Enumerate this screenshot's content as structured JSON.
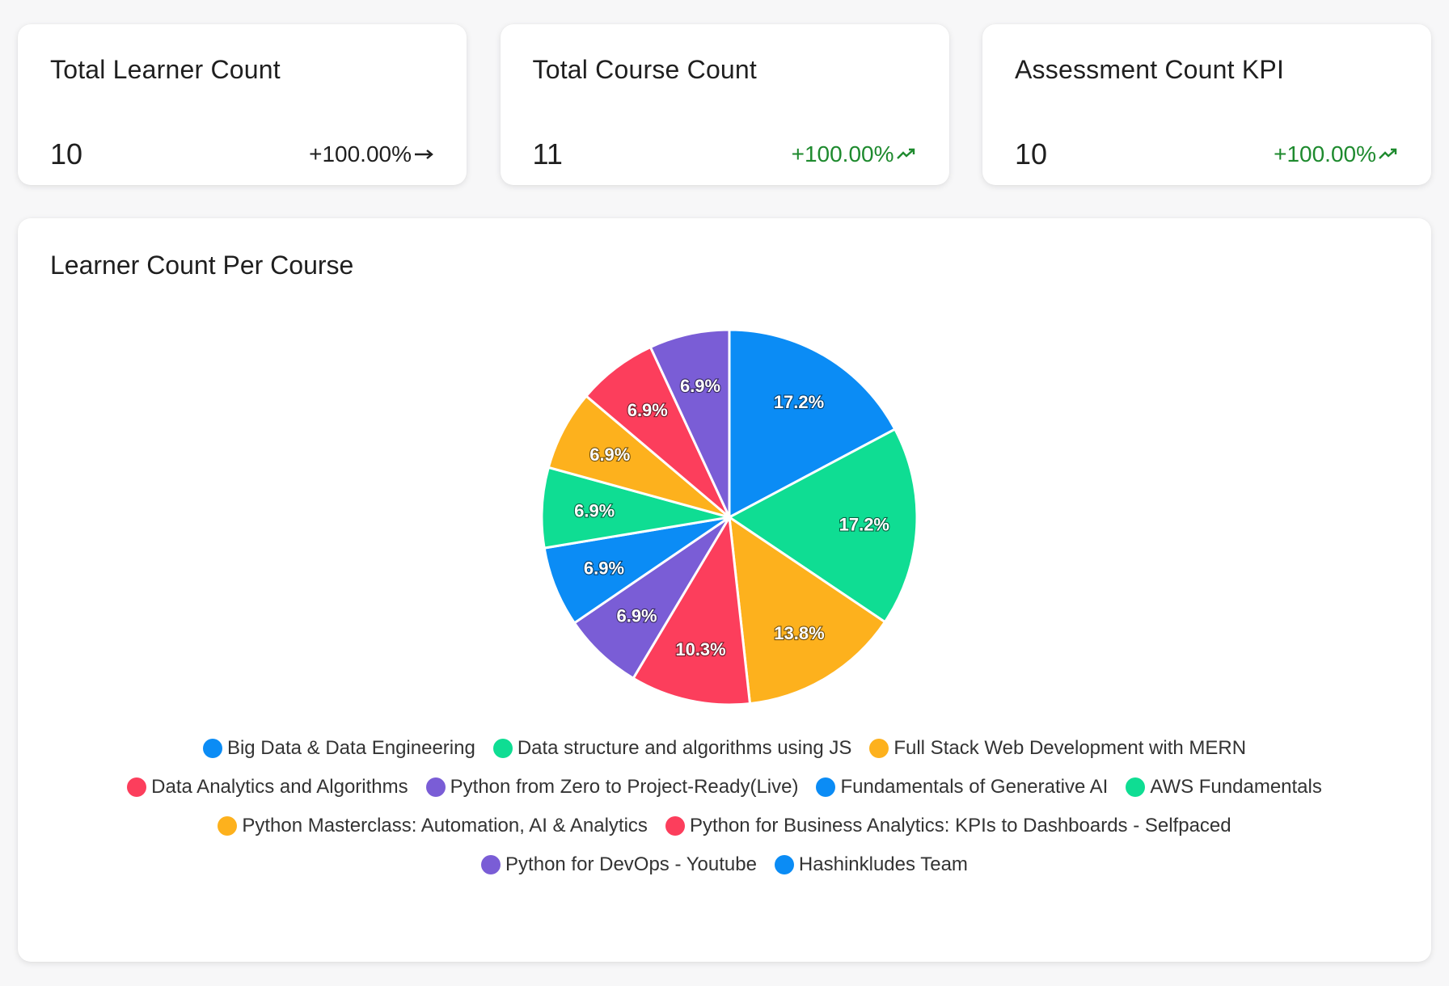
{
  "kpis": [
    {
      "title": "Total Learner Count",
      "value": "10",
      "change": "+100.00%",
      "trend": "flat"
    },
    {
      "title": "Total Course Count",
      "value": "11",
      "change": "+100.00%",
      "trend": "up"
    },
    {
      "title": "Assessment Count KPI",
      "value": "10",
      "change": "+100.00%",
      "trend": "up"
    }
  ],
  "colors": {
    "trend_up": "#1e8a2e",
    "trend_flat": "#1f1f1f"
  },
  "chart_data": {
    "type": "pie",
    "title": "Learner Count Per Course",
    "slices": [
      {
        "label": "Big Data & Data Engineering",
        "percent": 17.2,
        "display": "17.2%",
        "color": "#0b8cf5"
      },
      {
        "label": "Data structure and algorithms using JS",
        "percent": 17.2,
        "display": "17.2%",
        "color": "#0fdd93"
      },
      {
        "label": "Full Stack Web Development with MERN",
        "percent": 13.8,
        "display": "13.8%",
        "color": "#fdb11d"
      },
      {
        "label": "Data Analytics and Algorithms",
        "percent": 10.3,
        "display": "10.3%",
        "color": "#fc3e5c"
      },
      {
        "label": "Python from Zero to Project-Ready(Live)",
        "percent": 6.9,
        "display": "6.9%",
        "color": "#7a5dd6"
      },
      {
        "label": "Fundamentals of Generative AI",
        "percent": 6.9,
        "display": "6.9%",
        "color": "#0b8cf5"
      },
      {
        "label": "AWS Fundamentals",
        "percent": 6.9,
        "display": "6.9%",
        "color": "#0fdd93"
      },
      {
        "label": "Python Masterclass: Automation, AI & Analytics",
        "percent": 6.9,
        "display": "6.9%",
        "color": "#fdb11d"
      },
      {
        "label": "Python for Business Analytics: KPIs to Dashboards - Selfpaced",
        "percent": 6.9,
        "display": "6.9%",
        "color": "#fc3e5c"
      },
      {
        "label": "Python for DevOps - Youtube",
        "percent": 6.9,
        "display": "6.9%",
        "color": "#7a5dd6"
      },
      {
        "label": "Hashinkludes Team",
        "percent": 0,
        "display": "",
        "color": "#0b8cf5"
      }
    ],
    "legend_position": "bottom"
  }
}
